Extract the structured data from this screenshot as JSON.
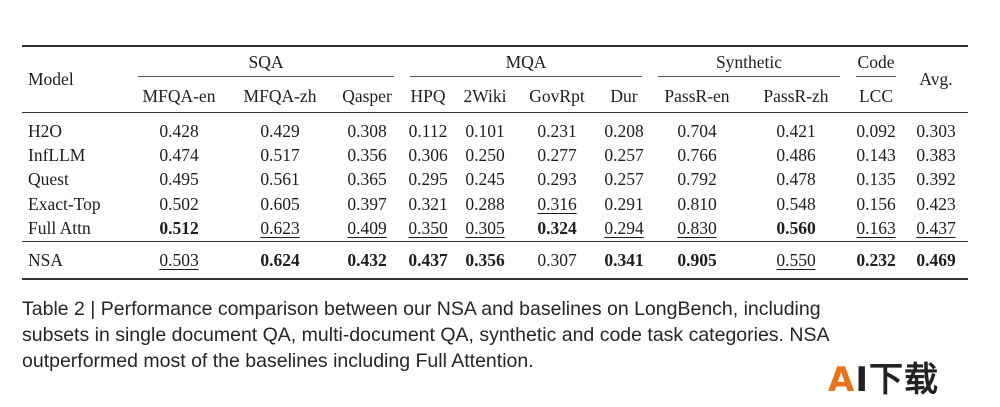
{
  "table": {
    "model_header": "Model",
    "avg_header": "Avg.",
    "groups": [
      {
        "name": "SQA",
        "columns": [
          "MFQA-en",
          "MFQA-zh",
          "Qasper"
        ]
      },
      {
        "name": "MQA",
        "columns": [
          "HPQ",
          "2Wiki",
          "GovRpt",
          "Dur"
        ]
      },
      {
        "name": "Synthetic",
        "columns": [
          "PassR-en",
          "PassR-zh"
        ]
      },
      {
        "name": "Code",
        "columns": [
          "LCC"
        ]
      }
    ],
    "rows": [
      {
        "model": "H2O",
        "values": [
          "0.428",
          "0.429",
          "0.308",
          "0.112",
          "0.101",
          "0.231",
          "0.208",
          "0.704",
          "0.421",
          "0.092",
          "0.303"
        ],
        "bold": [],
        "underline": []
      },
      {
        "model": "InfLLM",
        "values": [
          "0.474",
          "0.517",
          "0.356",
          "0.306",
          "0.250",
          "0.277",
          "0.257",
          "0.766",
          "0.486",
          "0.143",
          "0.383"
        ],
        "bold": [],
        "underline": []
      },
      {
        "model": "Quest",
        "values": [
          "0.495",
          "0.561",
          "0.365",
          "0.295",
          "0.245",
          "0.293",
          "0.257",
          "0.792",
          "0.478",
          "0.135",
          "0.392"
        ],
        "bold": [],
        "underline": []
      },
      {
        "model": "Exact-Top",
        "values": [
          "0.502",
          "0.605",
          "0.397",
          "0.321",
          "0.288",
          "0.316",
          "0.291",
          "0.810",
          "0.548",
          "0.156",
          "0.423"
        ],
        "bold": [],
        "underline": [
          5
        ]
      },
      {
        "model": "Full Attn",
        "values": [
          "0.512",
          "0.623",
          "0.409",
          "0.350",
          "0.305",
          "0.324",
          "0.294",
          "0.830",
          "0.560",
          "0.163",
          "0.437"
        ],
        "bold": [
          0,
          5,
          8
        ],
        "underline": [
          1,
          2,
          3,
          4,
          6,
          7,
          9,
          10
        ]
      },
      {
        "model": "NSA",
        "values": [
          "0.503",
          "0.624",
          "0.432",
          "0.437",
          "0.356",
          "0.307",
          "0.341",
          "0.905",
          "0.550",
          "0.232",
          "0.469"
        ],
        "bold": [
          1,
          2,
          3,
          4,
          6,
          7,
          9,
          10
        ],
        "underline": [
          0,
          8
        ]
      }
    ]
  },
  "caption": {
    "line1": "Table 2 | Performance comparison between our NSA and baselines on LongBench, including",
    "line2": "subsets in single document QA, multi-document QA, synthetic and code task categories. NSA",
    "line3": "outperformed most of the baselines including Full Attention."
  },
  "watermark": {
    "text_a": "A",
    "text_rest": "I下载"
  }
}
